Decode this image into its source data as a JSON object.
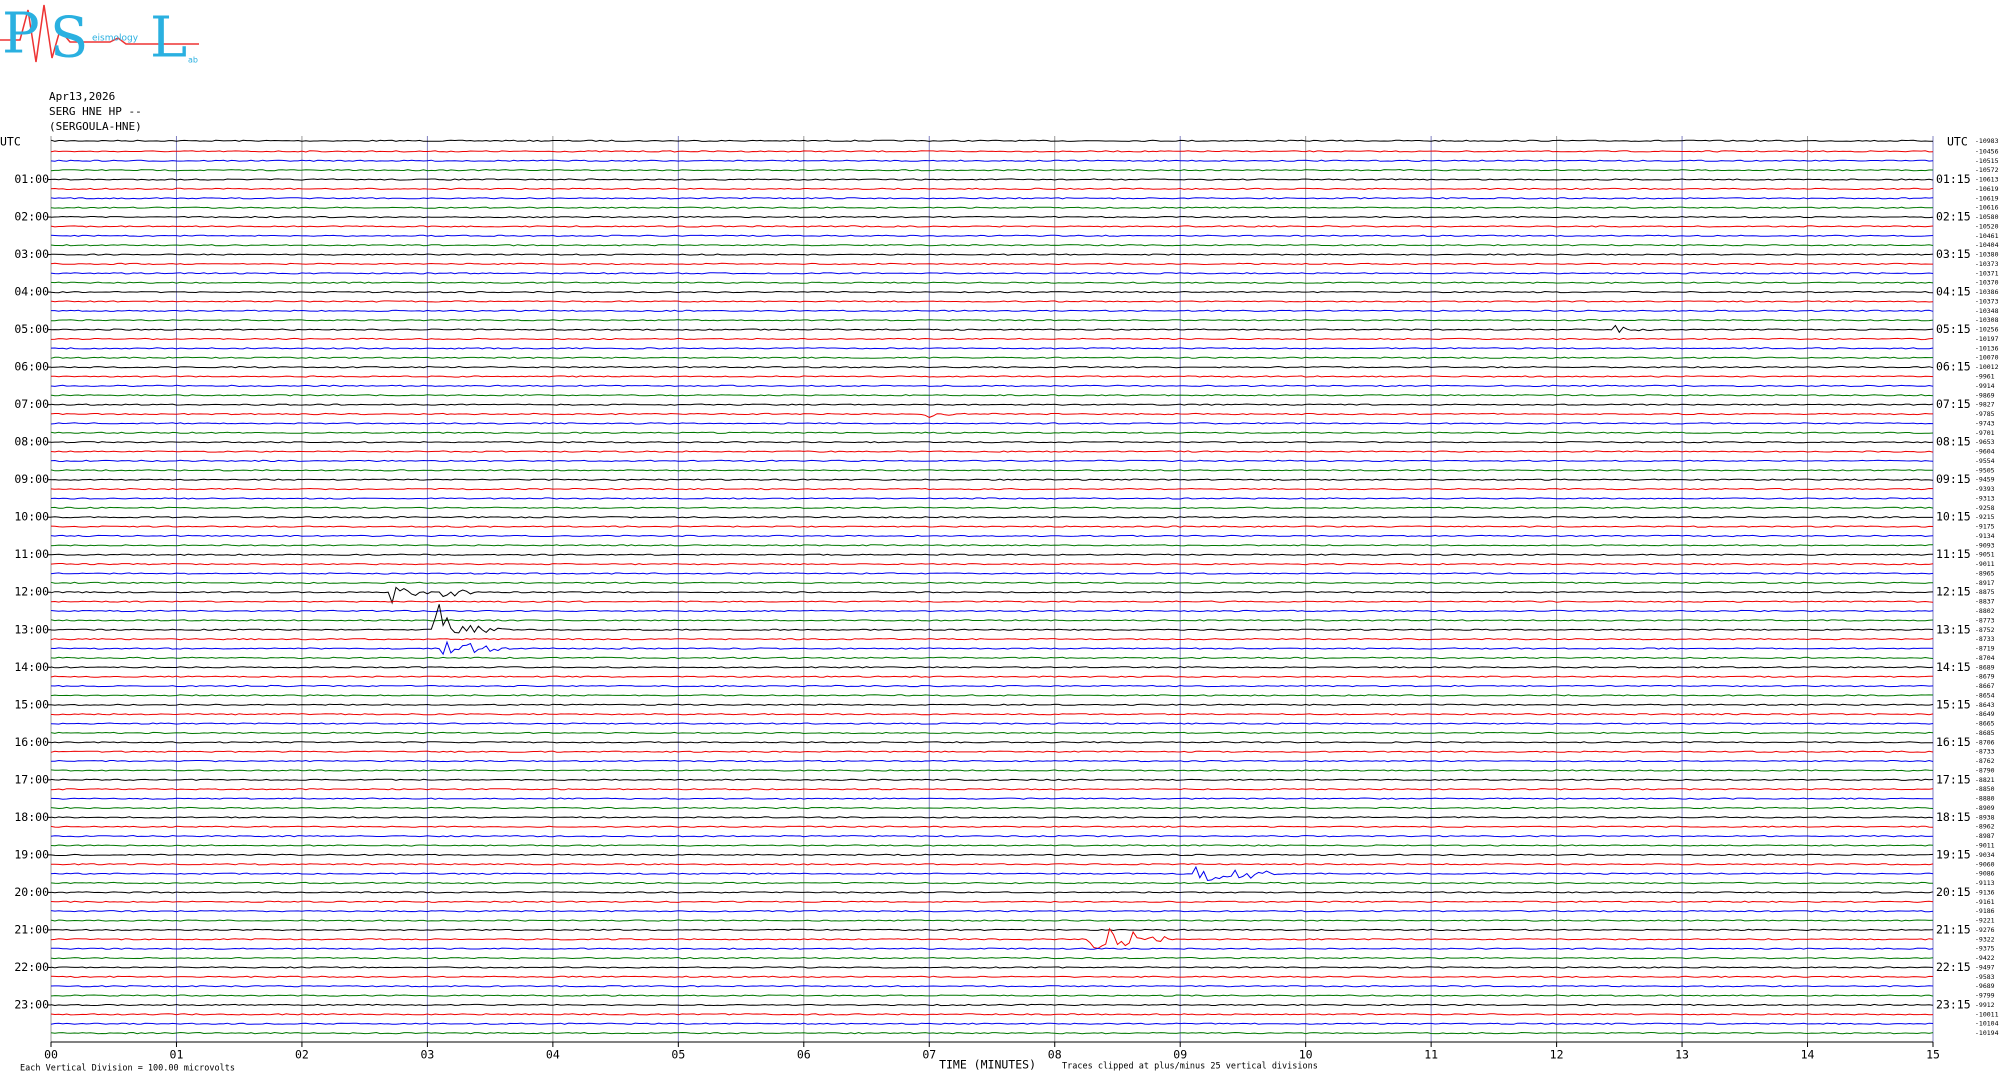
{
  "logo": {
    "p": "P",
    "s": "S",
    "l": "L",
    "mid": "eismology",
    "end": "ab"
  },
  "header": {
    "date": "Apr13,2026",
    "station": "SERG HNE HP --",
    "name": "(SERGOULA-HNE)"
  },
  "left_axis": {
    "label": "UTC",
    "hours": [
      "01:00",
      "02:00",
      "03:00",
      "04:00",
      "05:00",
      "06:00",
      "07:00",
      "08:00",
      "09:00",
      "10:00",
      "11:00",
      "12:00",
      "13:00",
      "14:00",
      "15:00",
      "16:00",
      "17:00",
      "18:00",
      "19:00",
      "20:00",
      "21:00",
      "22:00",
      "23:00"
    ]
  },
  "right_axis": {
    "label": "UTC",
    "hours": [
      "01:15",
      "02:15",
      "03:15",
      "04:15",
      "05:15",
      "06:15",
      "07:15",
      "08:15",
      "09:15",
      "10:15",
      "11:15",
      "12:15",
      "13:15",
      "14:15",
      "15:15",
      "16:15",
      "17:15",
      "18:15",
      "19:15",
      "20:15",
      "21:15",
      "22:15",
      "23:15"
    ],
    "counts": [
      "-10983",
      "-10456",
      "-10515",
      "-10572",
      "-10613",
      "-10619",
      "-10619",
      "-10616",
      "-10580",
      "-10520",
      "-10461",
      "-10404",
      "-10380",
      "-10373",
      "-10371",
      "-10370",
      "-10386",
      "-10373",
      "-10348",
      "-10308",
      "-10256",
      "-10197",
      "-10136",
      "-10070",
      "-10012",
      "-9961",
      "-9914",
      "-9869",
      "-9827",
      "-9785",
      "-9743",
      "-9701",
      "-9653",
      "-9604",
      "-9554",
      "-9505",
      "-9459",
      "-9393",
      "-9313",
      "-9258",
      "-9215",
      "-9175",
      "-9134",
      "-9093",
      "-9051",
      "-9011",
      "-8965",
      "-8917",
      "-8875",
      "-8837",
      "-8802",
      "-8773",
      "-8752",
      "-8733",
      "-8719",
      "-8704",
      "-8689",
      "-8679",
      "-8667",
      "-8654",
      "-8643",
      "-8649",
      "-8665",
      "-8685",
      "-8706",
      "-8733",
      "-8762",
      "-8790",
      "-8821",
      "-8850",
      "-8880",
      "-8909",
      "-8938",
      "-8962",
      "-8987",
      "-9011",
      "-9034",
      "-9060",
      "-9086",
      "-9113",
      "-9136",
      "-9161",
      "-9186",
      "-9221",
      "-9276",
      "-9322",
      "-9375",
      "-9422",
      "-9497",
      "-9583",
      "-9689",
      "-9799",
      "-9912",
      "-10011",
      "-10104",
      "-10194"
    ]
  },
  "x_axis": {
    "ticks": [
      "00",
      "01",
      "02",
      "03",
      "04",
      "05",
      "06",
      "07",
      "08",
      "09",
      "10",
      "11",
      "12",
      "13",
      "14",
      "15"
    ],
    "title": "TIME (MINUTES)"
  },
  "footer": {
    "division": "Each Vertical Division =  100.00 microvolts",
    "clip": "Traces clipped at plus/minus 25 vertical divisions"
  }
}
